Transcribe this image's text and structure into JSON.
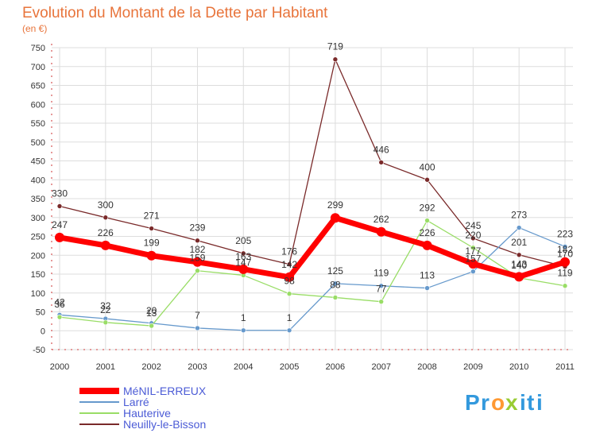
{
  "chart_data": {
    "type": "line",
    "title": "Evolution du Montant de la Dette par Habitant",
    "subtitle": "(en €)",
    "xlabel": "",
    "ylabel": "",
    "categories": [
      "2000",
      "2001",
      "2002",
      "2003",
      "2004",
      "2005",
      "2006",
      "2007",
      "2008",
      "2009",
      "2010",
      "2011"
    ],
    "ylim": [
      -50,
      750
    ],
    "yticks": [
      -50,
      0,
      50,
      100,
      150,
      200,
      250,
      300,
      350,
      400,
      450,
      500,
      550,
      600,
      650,
      700,
      750
    ],
    "grid": true,
    "legend_position": "bottom-left",
    "series": [
      {
        "name": "MéNIL-ERREUX",
        "color": "#ff0000",
        "width": 7,
        "values": [
          247,
          226,
          199,
          182,
          163,
          142,
          299,
          262,
          226,
          177,
          143,
          182
        ],
        "labels": [
          "247",
          "226",
          "199",
          "182",
          "163",
          "142",
          "299",
          "262",
          "226",
          "177",
          "143",
          "182"
        ]
      },
      {
        "name": "Larré",
        "color": "#6699cc",
        "width": 1.3,
        "values": [
          42,
          32,
          20,
          7,
          1,
          1,
          125,
          119,
          113,
          157,
          273,
          223
        ],
        "labels": [
          "42",
          "32",
          "20",
          "7",
          "1",
          "1",
          "125",
          "119",
          "113",
          "157",
          "273",
          "223"
        ]
      },
      {
        "name": "Hauterive",
        "color": "#99dd66",
        "width": 1.3,
        "values": [
          36,
          22,
          13,
          159,
          147,
          98,
          88,
          77,
          292,
          220,
          140,
          119
        ],
        "labels": [
          "36",
          "22",
          "13",
          "159",
          "147",
          "98",
          "88",
          "77",
          "292",
          "220",
          "140",
          "119"
        ]
      },
      {
        "name": "Neuilly-le-Bisson",
        "color": "#7a2a2a",
        "width": 1.3,
        "values": [
          330,
          300,
          271,
          239,
          205,
          176,
          719,
          446,
          400,
          245,
          201,
          170
        ],
        "labels": [
          "330",
          "300",
          "271",
          "239",
          "205",
          "176",
          "719",
          "446",
          "400",
          "245",
          "201",
          "170"
        ]
      }
    ],
    "label_order": [
      1,
      2,
      3,
      0
    ]
  },
  "logo": {
    "text": "Proxiti",
    "letters": [
      "P",
      "r",
      "o",
      "x",
      "i",
      "t",
      "i"
    ],
    "colors": [
      "#3399dd",
      "#3399dd",
      "#ff9933",
      "#99cc33",
      "#3399dd",
      "#3399dd",
      "#3399dd"
    ]
  }
}
